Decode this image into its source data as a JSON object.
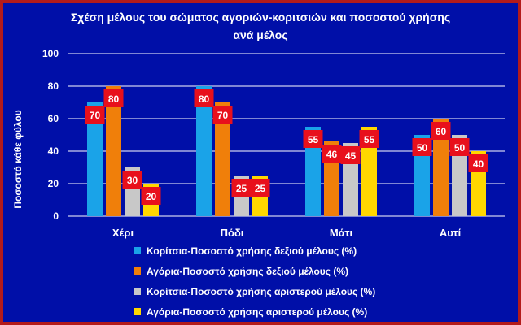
{
  "chart_data": {
    "type": "bar",
    "title": "Σχέση μέλους του σώματος αγοριών-κοριτσιών και ποσοστού  χρήσης",
    "subtitle": "ανά μέλος",
    "ylabel": "Ποσοστό κάθε φύλου",
    "xlabel": "",
    "ylim": [
      0,
      100
    ],
    "yticks": [
      0,
      20,
      40,
      60,
      80,
      100
    ],
    "grid": true,
    "legend_position": "bottom",
    "categories": [
      "Χέρι",
      "Πόδι",
      "Μάτι",
      "Αυτί"
    ],
    "series": [
      {
        "name": "Κορίτσια-Ποσοστό χρήσης  δεξιού μέλους  (%)",
        "values": [
          70,
          80,
          55,
          50
        ],
        "color": "#1aa3e8"
      },
      {
        "name": "Αγόρια-Ποσοστό χρήσης  δεξιού μέλους  (%)",
        "values": [
          80,
          70,
          46,
          60
        ],
        "color": "#f07f0a"
      },
      {
        "name": "Κορίτσια-Ποσοστό χρήσης  αριστερού μέλους  (%)",
        "values": [
          30,
          25,
          45,
          50
        ],
        "color": "#c8c8c8"
      },
      {
        "name": "Αγόρια-Ποσοστό χρήσης  αριστερού μέλους  (%)",
        "values": [
          20,
          25,
          55,
          40
        ],
        "color": "#ffd700"
      }
    ],
    "data_label_color": "#e8101c"
  }
}
